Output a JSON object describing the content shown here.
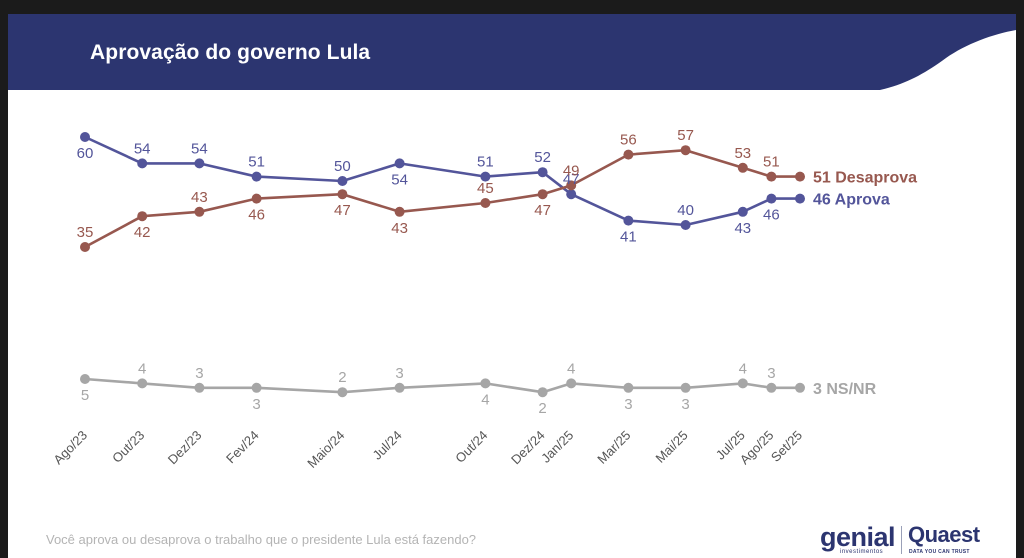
{
  "header": {
    "title": "Aprovação do governo Lula"
  },
  "footnote": "Você aprova ou desaprova o trabalho que o presidente Lula está fazendo?",
  "logos": {
    "genial": "genial",
    "genial_sub": "investimentos",
    "quaest": "Quaest",
    "quaest_sub": "DATA YOU CAN TRUST"
  },
  "colors": {
    "header_bg": "#2c3570",
    "aprova": "#53559a",
    "desaprova": "#97584f",
    "nsnr": "#a6a6a6"
  },
  "chart_data": {
    "type": "line",
    "categories": [
      "Ago/23",
      "Out/23",
      "Dez/23",
      "Fev/24",
      "Maio/24",
      "Jul/24",
      "Out/24",
      "Dez/24",
      "Jan/25",
      "Mar/25",
      "Mai/25",
      "Jul/25",
      "Ago/25",
      "Set/25"
    ],
    "x_months": [
      0,
      2,
      4,
      6,
      9,
      11,
      14,
      16,
      17,
      19,
      21,
      23,
      24,
      25
    ],
    "ylim": [
      0,
      65
    ],
    "grid": false,
    "legend": "end-of-line labels",
    "series": [
      {
        "name": "Aprova",
        "end_label": "46 Aprova",
        "values": [
          60,
          54,
          54,
          51,
          50,
          54,
          51,
          52,
          47,
          41,
          40,
          43,
          46,
          46
        ]
      },
      {
        "name": "Desaprova",
        "end_label": "51 Desaprova",
        "values": [
          35,
          42,
          43,
          46,
          47,
          43,
          45,
          47,
          49,
          56,
          57,
          53,
          51,
          51
        ]
      },
      {
        "name": "NS/NR",
        "end_label": "3 NS/NR",
        "values": [
          5,
          4,
          3,
          3,
          2,
          3,
          4,
          2,
          4,
          3,
          3,
          4,
          3,
          3
        ]
      }
    ]
  }
}
